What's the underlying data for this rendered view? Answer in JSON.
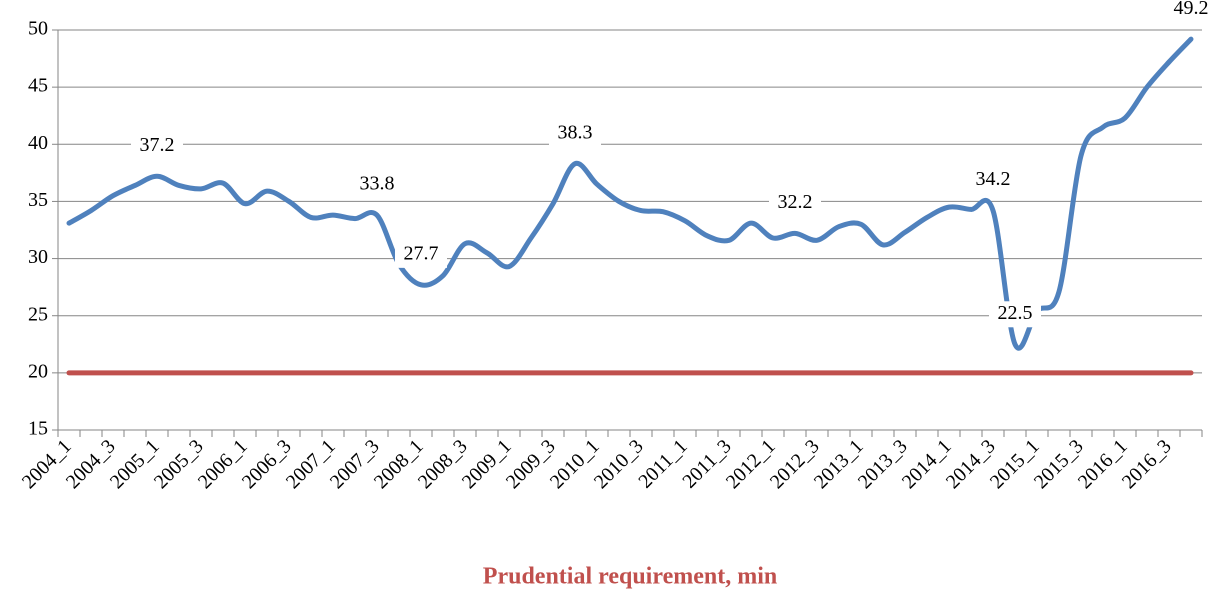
{
  "chart_data": {
    "type": "line",
    "categories": [
      "2004_1",
      null,
      "2004_3",
      null,
      "2005_1",
      null,
      "2005_3",
      null,
      "2006_1",
      null,
      "2006_3",
      null,
      "2007_1",
      null,
      "2007_3",
      null,
      "2008_1",
      null,
      "2008_3",
      null,
      "2009_1",
      null,
      "2009_3",
      null,
      "2010_1",
      null,
      "2010_3",
      null,
      "2011_1",
      null,
      "2011_3",
      null,
      "2012_1",
      null,
      "2012_3",
      null,
      "2013_1",
      null,
      "2013_3",
      null,
      "2014_1",
      null,
      "2014_3",
      null,
      "2015_1",
      null,
      "2015_3",
      null,
      "2016_1",
      null,
      "2016_3",
      null
    ],
    "series": [
      {
        "color": "#4f81bd",
        "values": [
          33.1,
          34.2,
          35.5,
          36.4,
          37.2,
          36.4,
          36.1,
          36.6,
          34.8,
          35.9,
          35.0,
          33.6,
          33.8,
          33.5,
          33.8,
          29.5,
          27.7,
          28.5,
          31.3,
          30.5,
          29.3,
          31.8,
          34.8,
          38.3,
          36.5,
          35.0,
          34.2,
          34.1,
          33.3,
          32.0,
          31.6,
          33.1,
          31.8,
          32.2,
          31.6,
          32.8,
          33.0,
          31.2,
          32.3,
          33.6,
          34.5,
          34.3,
          34.2,
          22.5,
          25.4,
          27.1,
          39.0,
          41.5,
          42.3,
          45.0,
          47.2,
          49.2
        ],
        "value_labels": [
          null,
          null,
          null,
          null,
          "37.2",
          null,
          null,
          null,
          null,
          null,
          null,
          null,
          null,
          null,
          "33.8",
          null,
          "27.7",
          null,
          null,
          null,
          null,
          null,
          null,
          "38.3",
          null,
          null,
          null,
          null,
          null,
          null,
          null,
          null,
          null,
          "32.2",
          null,
          null,
          null,
          null,
          null,
          null,
          null,
          null,
          "34.2",
          "22.5",
          null,
          null,
          null,
          null,
          null,
          null,
          null,
          "49.2"
        ]
      },
      {
        "name": "Prudential requirement, min",
        "color": "#c0504d",
        "values": [
          20,
          20,
          20,
          20,
          20,
          20,
          20,
          20,
          20,
          20,
          20,
          20,
          20,
          20,
          20,
          20,
          20,
          20,
          20,
          20,
          20,
          20,
          20,
          20,
          20,
          20,
          20,
          20,
          20,
          20,
          20,
          20,
          20,
          20,
          20,
          20,
          20,
          20,
          20,
          20,
          20,
          20,
          20,
          20,
          20,
          20,
          20,
          20,
          20,
          20,
          20,
          20
        ]
      }
    ],
    "ylim": [
      15,
      50
    ],
    "yticks": [
      15,
      20,
      25,
      30,
      35,
      40,
      45,
      50
    ],
    "grid": true,
    "legend": "bottom"
  }
}
